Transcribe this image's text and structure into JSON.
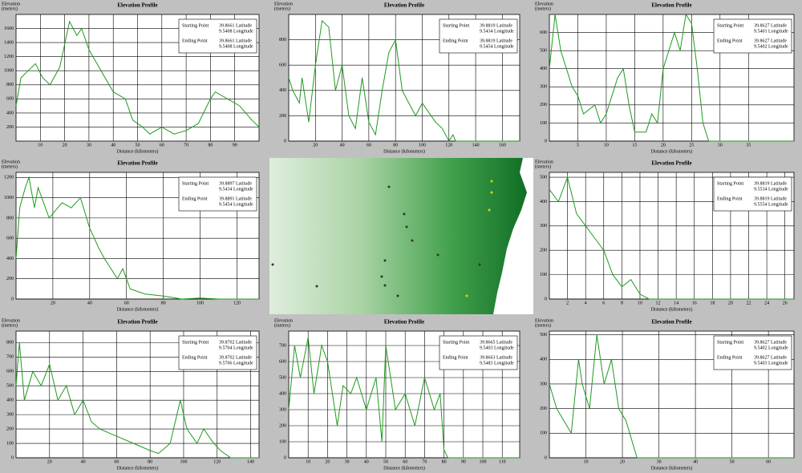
{
  "chart_data": [
    {
      "type": "line",
      "title": "Elevation Profile",
      "y_label": "Elevation",
      "y_unit": "(meters)",
      "x_label": "Distance (kilometers)",
      "color": "#1f9a1f",
      "grid": true,
      "x": [
        0,
        2,
        5,
        8,
        11,
        14,
        18,
        22,
        25,
        27,
        30,
        35,
        40,
        45,
        48,
        52,
        55,
        60,
        65,
        70,
        75,
        80,
        82,
        87,
        92,
        97,
        100
      ],
      "values": [
        500,
        900,
        1000,
        1100,
        900,
        800,
        1050,
        1700,
        1500,
        1600,
        1300,
        1000,
        700,
        600,
        300,
        200,
        100,
        200,
        100,
        150,
        250,
        600,
        700,
        600,
        500,
        300,
        200
      ],
      "xlim": [
        0,
        100
      ],
      "xticks": [
        10,
        20,
        30,
        40,
        50,
        60,
        70,
        80,
        90
      ],
      "ylim": [
        0,
        1800
      ],
      "yticks": [
        200,
        400,
        600,
        800,
        1000,
        1200,
        1400,
        1600
      ],
      "legend": {
        "start_label": "Starting Point",
        "start_lat": "39.8661 Latitude",
        "start_lon": "9.5408 Longitude",
        "end_label": "Ending Point",
        "end_lat": "39.8661 Latitude",
        "end_lon": "9.5408 Longitude"
      }
    },
    {
      "type": "line",
      "title": "Elevation Profile",
      "y_label": "Elevation",
      "y_unit": "(meters)",
      "x_label": "Distance (kilometers)",
      "color": "#1f9a1f",
      "grid": true,
      "x": [
        0,
        3,
        8,
        10,
        15,
        20,
        25,
        30,
        35,
        40,
        45,
        50,
        55,
        60,
        65,
        70,
        75,
        80,
        85,
        90,
        95,
        100,
        110,
        115,
        120,
        123,
        125,
        173
      ],
      "values": [
        500,
        400,
        300,
        500,
        150,
        600,
        950,
        900,
        400,
        600,
        200,
        100,
        500,
        150,
        50,
        400,
        700,
        800,
        400,
        300,
        200,
        300,
        150,
        100,
        0,
        50,
        0,
        0
      ],
      "xlim": [
        0,
        173
      ],
      "xticks": [
        20,
        40,
        60,
        80,
        100,
        120,
        140,
        160
      ],
      "ylim": [
        0,
        1000
      ],
      "yticks": [
        0,
        200,
        400,
        600,
        800
      ],
      "legend": {
        "start_label": "Starting Point",
        "start_lat": "39.8819 Latitude",
        "start_lon": "9.5434 Longitude",
        "end_label": "Ending Point",
        "end_lat": "39.8819 Latitude",
        "end_lon": "9.5454 Longitude"
      }
    },
    {
      "type": "line",
      "title": "Elevation Profile",
      "y_label": "Elevation",
      "y_unit": "(meters)",
      "x_label": "Distance (kilometers)",
      "color": "#1f9a1f",
      "grid": true,
      "x": [
        0,
        1,
        2,
        4,
        5,
        6,
        8,
        9,
        10,
        12,
        13,
        14,
        15,
        17,
        18,
        19,
        20,
        21,
        22,
        23,
        24,
        25,
        26,
        27,
        28,
        43
      ],
      "values": [
        400,
        700,
        500,
        300,
        250,
        150,
        200,
        100,
        150,
        350,
        400,
        200,
        50,
        50,
        150,
        100,
        400,
        500,
        600,
        500,
        700,
        650,
        400,
        100,
        0,
        0
      ],
      "xlim": [
        0,
        43
      ],
      "xticks": [
        5,
        10,
        15,
        20,
        25,
        30,
        35
      ],
      "ylim": [
        0,
        700
      ],
      "yticks": [
        0,
        100,
        200,
        300,
        400,
        500,
        600
      ],
      "legend": {
        "start_label": "Starting Point",
        "start_lat": "39.8627 Latitude",
        "start_lon": "9.5401 Longitude",
        "end_label": "Ending Point",
        "end_lat": "39.8627 Latitude",
        "end_lon": "9.5402 Longitude"
      }
    },
    {
      "type": "line",
      "title": "Elevation Profile",
      "y_label": "Elevation",
      "y_unit": "(meters)",
      "x_label": "Distance (kilometers)",
      "color": "#1f9a1f",
      "grid": true,
      "x": [
        0,
        2,
        5,
        7,
        10,
        12,
        18,
        25,
        30,
        35,
        40,
        45,
        48,
        55,
        58,
        62,
        70,
        80,
        90,
        100,
        110,
        132
      ],
      "values": [
        400,
        900,
        1100,
        1200,
        900,
        1100,
        800,
        950,
        900,
        1000,
        700,
        500,
        400,
        200,
        300,
        100,
        50,
        30,
        0,
        10,
        0,
        0
      ],
      "xlim": [
        0,
        132
      ],
      "xticks": [
        20,
        40,
        60,
        80,
        100,
        120
      ],
      "ylim": [
        0,
        1250
      ],
      "yticks": [
        0,
        200,
        400,
        600,
        800,
        1000,
        1200
      ],
      "legend": {
        "start_label": "Starting Point",
        "start_lat": "39.8897 Latitude",
        "start_lon": "9.5434 Longitude",
        "end_label": "Ending Point",
        "end_lat": "39.8891 Latitude",
        "end_lon": "9.5454 Longitude"
      }
    },
    {
      "type": "line",
      "title": "Elevation Profile",
      "y_label": "Elevation",
      "y_unit": "(meters)",
      "x_label": "Distance (kilometers)",
      "color": "#1f9a1f",
      "grid": true,
      "x": [
        0,
        1,
        2,
        3,
        4,
        5,
        6,
        7,
        8,
        9,
        10,
        11,
        27
      ],
      "values": [
        450,
        400,
        500,
        350,
        300,
        250,
        200,
        100,
        50,
        80,
        20,
        0,
        0
      ],
      "xlim": [
        0,
        27
      ],
      "xticks": [
        2,
        4,
        6,
        8,
        10,
        12,
        14,
        16,
        18,
        20,
        22,
        24,
        26
      ],
      "ylim": [
        0,
        520
      ],
      "yticks": [
        0,
        100,
        200,
        300,
        400,
        500
      ],
      "legend": {
        "start_label": "Starting Point",
        "start_lat": "39.8819 Latitude",
        "start_lon": "9.5534 Longitude",
        "end_label": "Ending Point",
        "end_lat": "39.8819 Latitude",
        "end_lon": "9.5554 Longitude"
      }
    },
    {
      "type": "line",
      "title": "Elevation Profile",
      "y_label": "Elevation",
      "y_unit": "(meters)",
      "x_label": "Distance (kilometers)",
      "color": "#1f9a1f",
      "grid": true,
      "x": [
        0,
        2,
        5,
        10,
        15,
        20,
        25,
        30,
        35,
        40,
        45,
        50,
        60,
        70,
        80,
        85,
        92,
        98,
        102,
        108,
        112,
        118,
        122,
        128,
        145
      ],
      "values": [
        500,
        800,
        400,
        600,
        500,
        650,
        400,
        500,
        300,
        400,
        250,
        200,
        150,
        100,
        50,
        30,
        100,
        400,
        200,
        100,
        200,
        100,
        50,
        0,
        0
      ],
      "xlim": [
        0,
        145
      ],
      "xticks": [
        20,
        40,
        60,
        80,
        100,
        120,
        140
      ],
      "ylim": [
        0,
        880
      ],
      "yticks": [
        0,
        100,
        200,
        300,
        400,
        500,
        600,
        700,
        800
      ],
      "legend": {
        "start_label": "Starting Point",
        "start_lat": "39.8702 Latitude",
        "start_lon": "9.5704 Longitude",
        "end_label": "Ending Point",
        "end_lat": "39.8702 Latitude",
        "end_lon": "9.5706 Longitude"
      }
    },
    {
      "type": "line",
      "title": "Elevation Profile",
      "y_label": "Elevation",
      "y_unit": "(meters)",
      "x_label": "Distance (kilometers)",
      "color": "#1f9a1f",
      "grid": true,
      "x": [
        0,
        3,
        6,
        10,
        13,
        17,
        20,
        25,
        28,
        32,
        35,
        40,
        45,
        48,
        50,
        55,
        60,
        65,
        70,
        75,
        78,
        80,
        82,
        119
      ],
      "values": [
        300,
        700,
        500,
        750,
        400,
        700,
        600,
        200,
        450,
        400,
        500,
        300,
        500,
        100,
        700,
        300,
        400,
        200,
        500,
        300,
        400,
        50,
        0,
        0
      ],
      "xlim": [
        0,
        119
      ],
      "xticks": [
        10,
        20,
        30,
        40,
        50,
        60,
        70,
        80,
        90,
        100,
        110
      ],
      "ylim": [
        0,
        790
      ],
      "yticks": [
        0,
        100,
        200,
        300,
        400,
        500,
        600,
        700
      ],
      "legend": {
        "start_label": "Starting Point",
        "start_lat": "39.8665 Latitude",
        "start_lon": "9.5403 Longitude",
        "end_label": "Ending Point",
        "end_lat": "39.8663 Latitude",
        "end_lon": "9.5483 Longitude"
      }
    },
    {
      "type": "line",
      "title": "Elevation Profile",
      "y_label": "Elevation",
      "y_unit": "(meters)",
      "x_label": "Distance (kilometers)",
      "color": "#1f9a1f",
      "grid": true,
      "x": [
        0,
        2,
        4,
        6,
        8,
        9,
        11,
        13,
        15,
        17,
        19,
        21,
        23,
        24,
        67
      ],
      "values": [
        300,
        200,
        150,
        100,
        400,
        300,
        200,
        500,
        300,
        400,
        200,
        150,
        50,
        0,
        0
      ],
      "xlim": [
        0,
        67
      ],
      "xticks": [
        10,
        20,
        30,
        40,
        50,
        60
      ],
      "ylim": [
        0,
        515
      ],
      "yticks": [
        0,
        100,
        200,
        300,
        400,
        500
      ],
      "legend": {
        "start_label": "Starting Point",
        "start_lat": "39.8627 Latitude",
        "start_lon": "9.5402 Longitude",
        "end_label": "Ending Point",
        "end_lat": "39.8627 Latitude",
        "end_lon": "9.5403 Longitude"
      }
    }
  ]
}
